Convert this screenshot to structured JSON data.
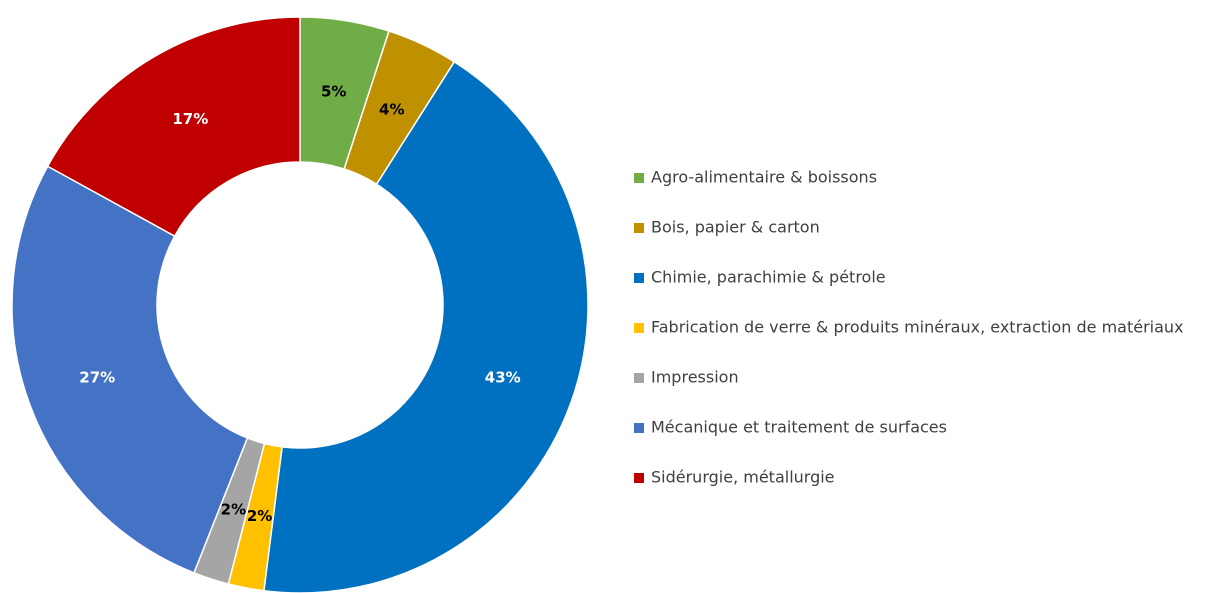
{
  "chart_data": {
    "type": "donut",
    "categories": [
      "Agro-alimentaire & boissons",
      "Bois, papier & carton",
      "Chimie, parachimie & pétrole",
      "Fabrication de verre & produits minéraux, extraction de matériaux",
      "Impression",
      "Mécanique et traitement de surfaces",
      "Sidérurgie, métallurgie"
    ],
    "values": [
      5,
      4,
      43,
      2,
      2,
      27,
      17
    ],
    "value_labels": [
      "5%",
      "4%",
      "43%",
      "2%",
      "2%",
      "27%",
      "17%"
    ],
    "colors": [
      "#70ad47",
      "#bf9000",
      "#0070c0",
      "#ffc000",
      "#a5a5a5",
      "#4472c4",
      "#c00000"
    ],
    "legend": "right"
  }
}
